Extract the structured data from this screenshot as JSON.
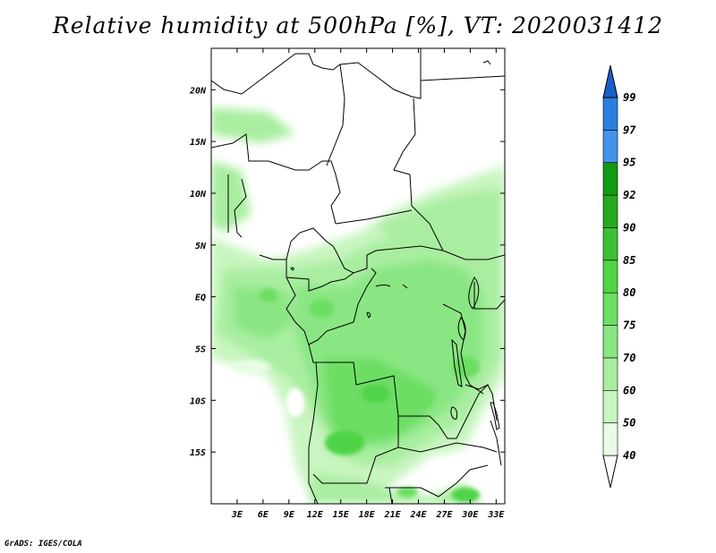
{
  "title": "Relative humidity at 500hPa [%], VT: 2020031412",
  "credit": "GrADS: IGES/COLA",
  "map": {
    "lon_range": [
      0,
      34
    ],
    "lat_range": [
      -20,
      24
    ],
    "lat_ticks": [
      {
        "value": 20,
        "label": "20N"
      },
      {
        "value": 15,
        "label": "15N"
      },
      {
        "value": 10,
        "label": "10N"
      },
      {
        "value": 5,
        "label": "5N"
      },
      {
        "value": 0,
        "label": "EQ"
      },
      {
        "value": -5,
        "label": "5S"
      },
      {
        "value": -10,
        "label": "10S"
      },
      {
        "value": -15,
        "label": "15S"
      }
    ],
    "lon_ticks": [
      {
        "value": 3,
        "label": "3E"
      },
      {
        "value": 6,
        "label": "6E"
      },
      {
        "value": 9,
        "label": "9E"
      },
      {
        "value": 12,
        "label": "12E"
      },
      {
        "value": 15,
        "label": "15E"
      },
      {
        "value": 18,
        "label": "18E"
      },
      {
        "value": 21,
        "label": "21E"
      },
      {
        "value": 24,
        "label": "24E"
      },
      {
        "value": 27,
        "label": "27E"
      },
      {
        "value": 30,
        "label": "30E"
      },
      {
        "value": 33,
        "label": "33E"
      }
    ]
  },
  "colorbar": {
    "levels": [
      "40",
      "50",
      "60",
      "70",
      "75",
      "80",
      "85",
      "90",
      "92",
      "95",
      "97",
      "99"
    ],
    "colors": [
      "#ffffff",
      "#e8fce5",
      "#c8f5c0",
      "#a9eea0",
      "#8ae683",
      "#6cde63",
      "#4fd446",
      "#3cc033",
      "#24aa21",
      "#129a12",
      "#4593e8",
      "#2a7ee0",
      "#1a5fc8"
    ]
  }
}
